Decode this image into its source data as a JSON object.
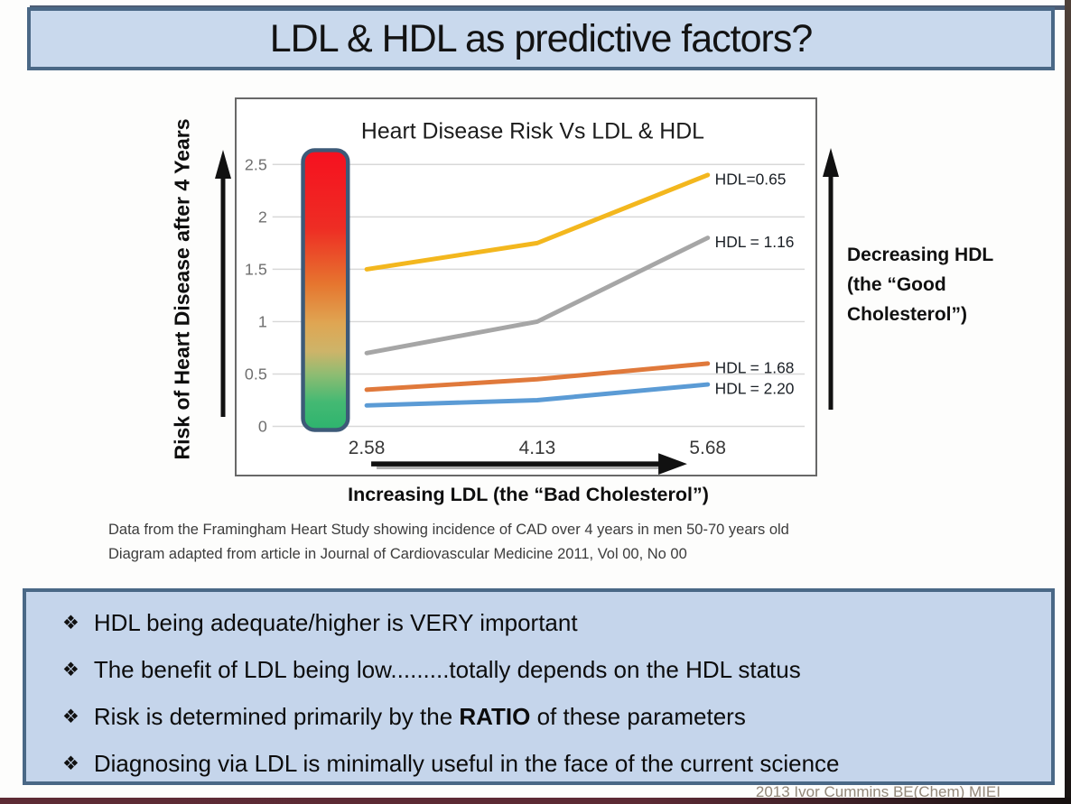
{
  "colors": {
    "panel_fill": "#c9d9ed",
    "panel_border": "#4a6886",
    "footer_bar": "#5d2b35",
    "gridline": "#d8d8d8"
  },
  "title_bar": {
    "text": "LDL & HDL as predictive factors?"
  },
  "chart_data": {
    "type": "line",
    "title": "Heart Disease Risk Vs LDL & HDL",
    "xlabel": "Increasing LDL (the “Bad Cholesterol”)",
    "ylabel": "Risk of Heart Disease after 4 Years",
    "x": [
      2.58,
      4.13,
      5.68
    ],
    "x_tick_labels": [
      "2.58",
      "4.13",
      "5.68"
    ],
    "xlim": [
      2.58,
      5.68
    ],
    "ylim": [
      0,
      2.5
    ],
    "yticks": [
      0,
      0.5,
      1,
      1.5,
      2,
      2.5
    ],
    "ytick_labels": [
      "0",
      "0.5",
      "1",
      "1.5",
      "2",
      "2.5"
    ],
    "grid": true,
    "legend_position": "labels at right ends of lines",
    "series": [
      {
        "name": "HDL=0.65",
        "color": "#f3b71e",
        "values": [
          1.5,
          1.75,
          2.4
        ]
      },
      {
        "name": "HDL = 1.16",
        "color": "#a6a6a6",
        "values": [
          0.7,
          1.0,
          1.8
        ]
      },
      {
        "name": "HDL = 1.68",
        "color": "#e0793b",
        "values": [
          0.35,
          0.45,
          0.6
        ]
      },
      {
        "name": "HDL = 2.20",
        "color": "#5b9bd5",
        "values": [
          0.2,
          0.25,
          0.4
        ]
      }
    ],
    "risk_scale_bar": {
      "description": "vertical gradient bar, high risk red at top to low risk green at bottom",
      "top_color": "#f6101f",
      "bottom_color": "#2db46e"
    }
  },
  "right_annotation": {
    "lines": [
      "Decreasing HDL",
      "(the “Good",
      "Cholesterol”)"
    ]
  },
  "captions": {
    "line1": "Data from the Framingham Heart Study showing incidence of CAD over 4 years in men 50-70 years old",
    "line2": "Diagram adapted from article in Journal of Cardiovascular Medicine 2011, Vol 00, No 00"
  },
  "bullets": {
    "marker": "❖",
    "items": [
      {
        "pre": "HDL being adequate/higher is VERY important",
        "bold": "",
        "post": ""
      },
      {
        "pre": "The benefit of LDL being low.........totally depends on the HDL status",
        "bold": "",
        "post": ""
      },
      {
        "pre": "Risk is determined primarily by the ",
        "bold": "RATIO",
        "post": " of these parameters"
      },
      {
        "pre": "Diagnosing via LDL is minimally useful in the face of the current science",
        "bold": "",
        "post": ""
      }
    ]
  },
  "credit": {
    "text": "2013 Ivor Cummins BE(Chem) MIEI"
  }
}
